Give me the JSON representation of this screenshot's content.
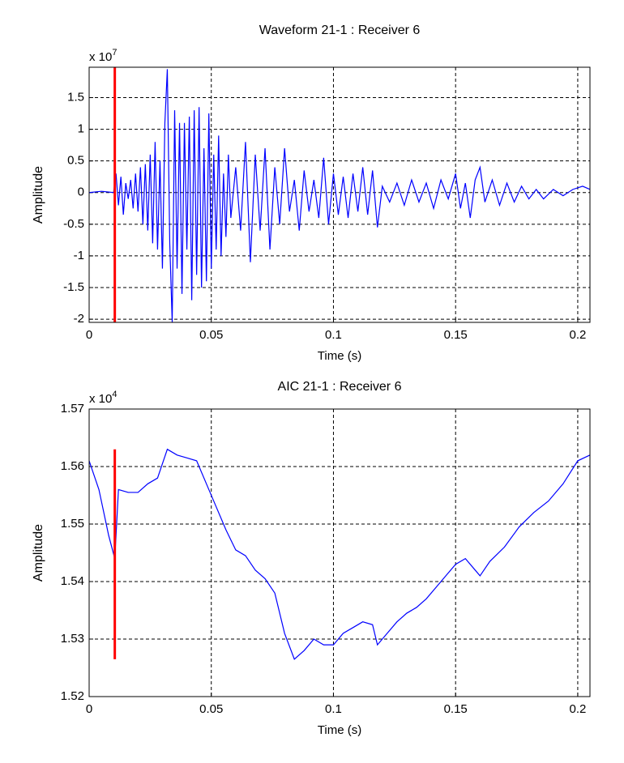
{
  "chart_data": [
    {
      "type": "line",
      "title": "Waveform 21-1 : Receiver 6",
      "multiplier": {
        "base": "x 10",
        "exponent": "7"
      },
      "xlabel": "Time (s)",
      "ylabel": "Amplitude",
      "xlim": [
        0,
        0.205
      ],
      "ylim": [
        -2.05,
        1.98
      ],
      "xticks": [
        0,
        0.05,
        0.1,
        0.15,
        0.2
      ],
      "yticks": [
        -2,
        -1.5,
        -1,
        -0.5,
        0,
        0.5,
        1,
        1.5
      ],
      "grid": true,
      "x": [
        0,
        0.005,
        0.01,
        0.011,
        0.012,
        0.013,
        0.014,
        0.015,
        0.016,
        0.017,
        0.018,
        0.019,
        0.02,
        0.021,
        0.022,
        0.023,
        0.024,
        0.025,
        0.026,
        0.027,
        0.028,
        0.029,
        0.03,
        0.031,
        0.032,
        0.033,
        0.034,
        0.035,
        0.036,
        0.037,
        0.038,
        0.039,
        0.04,
        0.041,
        0.042,
        0.043,
        0.044,
        0.045,
        0.046,
        0.047,
        0.048,
        0.049,
        0.05,
        0.051,
        0.052,
        0.053,
        0.054,
        0.055,
        0.056,
        0.057,
        0.058,
        0.06,
        0.062,
        0.064,
        0.066,
        0.068,
        0.07,
        0.072,
        0.074,
        0.076,
        0.078,
        0.08,
        0.082,
        0.084,
        0.086,
        0.088,
        0.09,
        0.092,
        0.094,
        0.096,
        0.098,
        0.1,
        0.102,
        0.104,
        0.106,
        0.108,
        0.11,
        0.112,
        0.114,
        0.116,
        0.118,
        0.12,
        0.123,
        0.126,
        0.129,
        0.132,
        0.135,
        0.138,
        0.141,
        0.144,
        0.147,
        0.15,
        0.152,
        0.154,
        0.156,
        0.158,
        0.16,
        0.162,
        0.165,
        0.168,
        0.171,
        0.174,
        0.177,
        0.18,
        0.183,
        0.186,
        0.19,
        0.194,
        0.198,
        0.202,
        0.205
      ],
      "series": [
        {
          "color": "#0000ff",
          "values": [
            0,
            0.02,
            0,
            0.3,
            -0.2,
            0.25,
            -0.35,
            0.15,
            -0.1,
            0.2,
            -0.25,
            0.3,
            -0.3,
            0.4,
            -0.5,
            0.45,
            -0.6,
            0.6,
            -0.8,
            0.8,
            -0.9,
            0.5,
            -1.2,
            1.1,
            1.95,
            -0.8,
            -2.05,
            1.3,
            -1.2,
            1.1,
            -1.6,
            1.1,
            -0.9,
            1.2,
            -1.7,
            1.3,
            -1.3,
            1.35,
            -1.5,
            0.7,
            -1.4,
            1.25,
            -1.2,
            0.6,
            -0.9,
            0.9,
            -1,
            0.3,
            -0.7,
            0.6,
            -0.4,
            0.4,
            -0.6,
            0.8,
            -1.1,
            0.6,
            -0.6,
            0.7,
            -0.9,
            0.4,
            -0.5,
            0.7,
            -0.3,
            0.2,
            -0.6,
            0.35,
            -0.3,
            0.2,
            -0.4,
            0.55,
            -0.5,
            0.3,
            -0.35,
            0.25,
            -0.4,
            0.3,
            -0.3,
            0.4,
            -0.35,
            0.35,
            -0.55,
            0.1,
            -0.15,
            0.15,
            -0.2,
            0.2,
            -0.15,
            0.15,
            -0.25,
            0.2,
            -0.1,
            0.3,
            -0.25,
            0.15,
            -0.4,
            0.2,
            0.4,
            -0.15,
            0.2,
            -0.2,
            0.15,
            -0.15,
            0.1,
            -0.1,
            0.05,
            -0.1,
            0.05,
            -0.05,
            0.05,
            0.1,
            0.05
          ]
        }
      ],
      "marker": {
        "x": 0.0105,
        "color": "#ff0000"
      }
    },
    {
      "type": "line",
      "title": "AIC 21-1 : Receiver 6",
      "multiplier": {
        "base": "x 10",
        "exponent": "4"
      },
      "xlabel": "Time (s)",
      "ylabel": "Amplitude",
      "xlim": [
        0,
        0.205
      ],
      "ylim": [
        1.52,
        1.57
      ],
      "xticks": [
        0,
        0.05,
        0.1,
        0.15,
        0.2
      ],
      "yticks": [
        1.52,
        1.53,
        1.54,
        1.55,
        1.56,
        1.57
      ],
      "grid": true,
      "x": [
        0,
        0.004,
        0.008,
        0.0105,
        0.012,
        0.016,
        0.02,
        0.024,
        0.028,
        0.032,
        0.036,
        0.04,
        0.044,
        0.048,
        0.052,
        0.056,
        0.06,
        0.064,
        0.068,
        0.072,
        0.076,
        0.08,
        0.084,
        0.088,
        0.092,
        0.096,
        0.1,
        0.104,
        0.108,
        0.112,
        0.116,
        0.118,
        0.122,
        0.126,
        0.13,
        0.134,
        0.138,
        0.142,
        0.146,
        0.15,
        0.154,
        0.158,
        0.16,
        0.164,
        0.17,
        0.176,
        0.182,
        0.188,
        0.194,
        0.2,
        0.205
      ],
      "series": [
        {
          "color": "#0000ff",
          "values": [
            1.561,
            1.556,
            1.548,
            1.544,
            1.556,
            1.5555,
            1.5555,
            1.557,
            1.558,
            1.563,
            1.562,
            1.5615,
            1.561,
            1.557,
            1.553,
            1.549,
            1.5455,
            1.5445,
            1.542,
            1.5405,
            1.538,
            1.531,
            1.5265,
            1.528,
            1.53,
            1.529,
            1.529,
            1.531,
            1.532,
            1.533,
            1.5325,
            1.529,
            1.531,
            1.533,
            1.5345,
            1.5355,
            1.537,
            1.539,
            1.541,
            1.543,
            1.544,
            1.542,
            1.541,
            1.5435,
            1.546,
            1.5495,
            1.552,
            1.554,
            1.557,
            1.561,
            1.562
          ]
        }
      ],
      "marker": {
        "x": 0.0105,
        "y": [
          1.5265,
          1.563
        ],
        "color": "#ff0000"
      }
    }
  ]
}
